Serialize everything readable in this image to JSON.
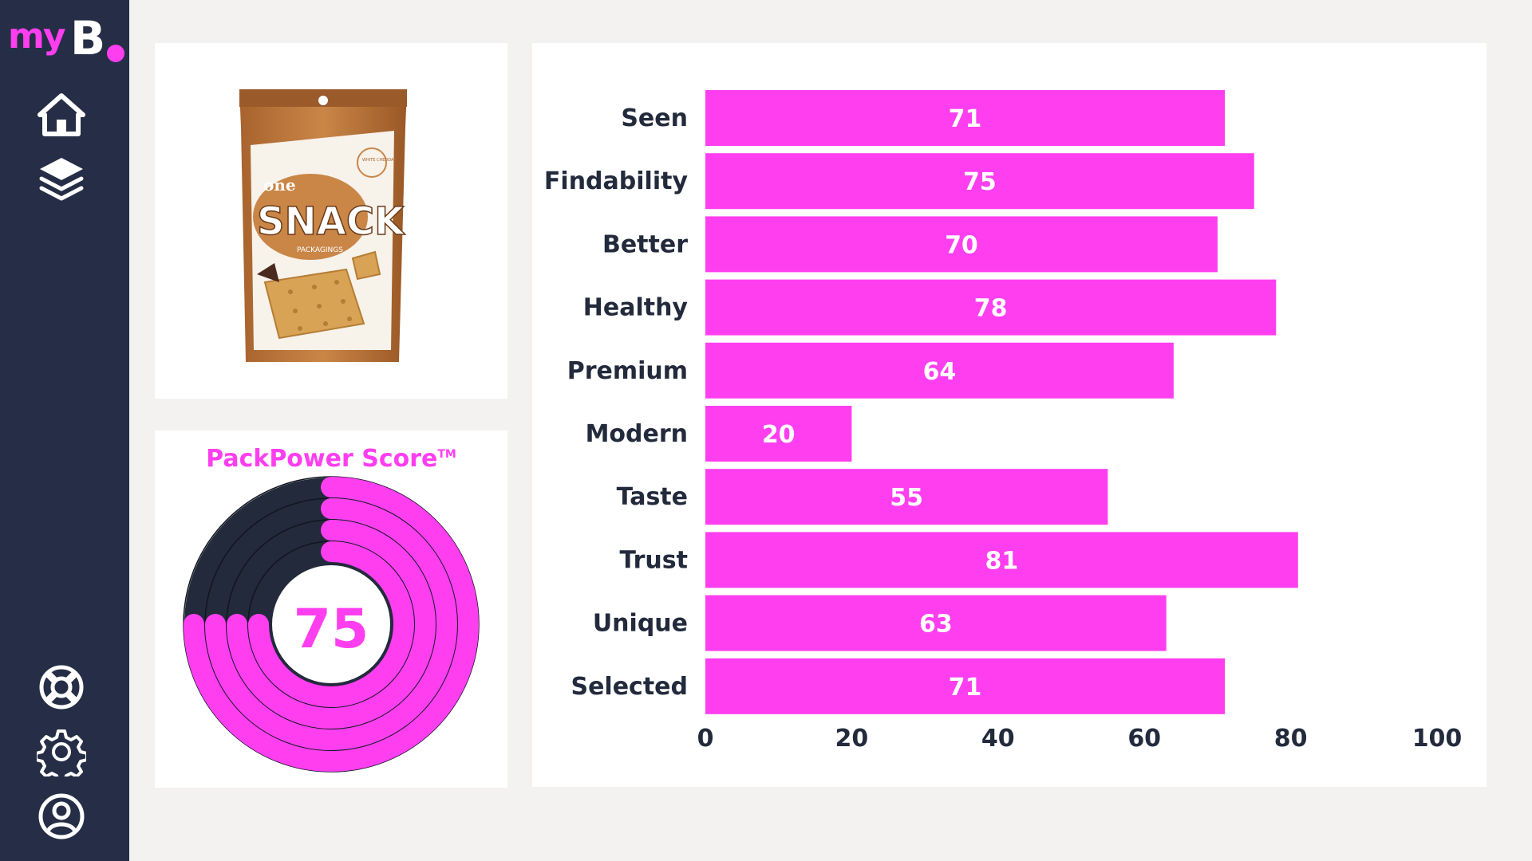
{
  "app": {
    "logo_my": "my",
    "logo_b": "B",
    "accent": "#ff3ef0",
    "sidebar_bg": "#252e46"
  },
  "sidebar": {
    "top_items": [
      {
        "name": "home-icon"
      },
      {
        "name": "layers-icon"
      }
    ],
    "bottom_items": [
      {
        "name": "lifebuoy-icon"
      },
      {
        "name": "gear-icon"
      },
      {
        "name": "user-icon"
      }
    ]
  },
  "product": {
    "brand_small": "one",
    "brand_big": "SNACK",
    "sub": "PACKAGINGS",
    "badge": "WHITE CHEDDAR"
  },
  "score": {
    "title": "PackPower Score",
    "trademark": "TM",
    "value": "75",
    "fraction": 0.75,
    "ring_dark": "#222a3c",
    "ring_accent": "#ff3ef0"
  },
  "chart_data": {
    "type": "bar",
    "orientation": "horizontal",
    "categories": [
      "Seen",
      "Findability",
      "Better",
      "Healthy",
      "Premium",
      "Modern",
      "Taste",
      "Trust",
      "Unique",
      "Selected"
    ],
    "values": [
      71,
      75,
      70,
      78,
      64,
      20,
      55,
      81,
      63,
      71
    ],
    "xlim": [
      0,
      100
    ],
    "xticks": [
      0,
      20,
      40,
      60,
      80,
      100
    ],
    "title": "",
    "xlabel": "",
    "ylabel": "",
    "grid": false,
    "bar_color": "#ff3ef0"
  }
}
